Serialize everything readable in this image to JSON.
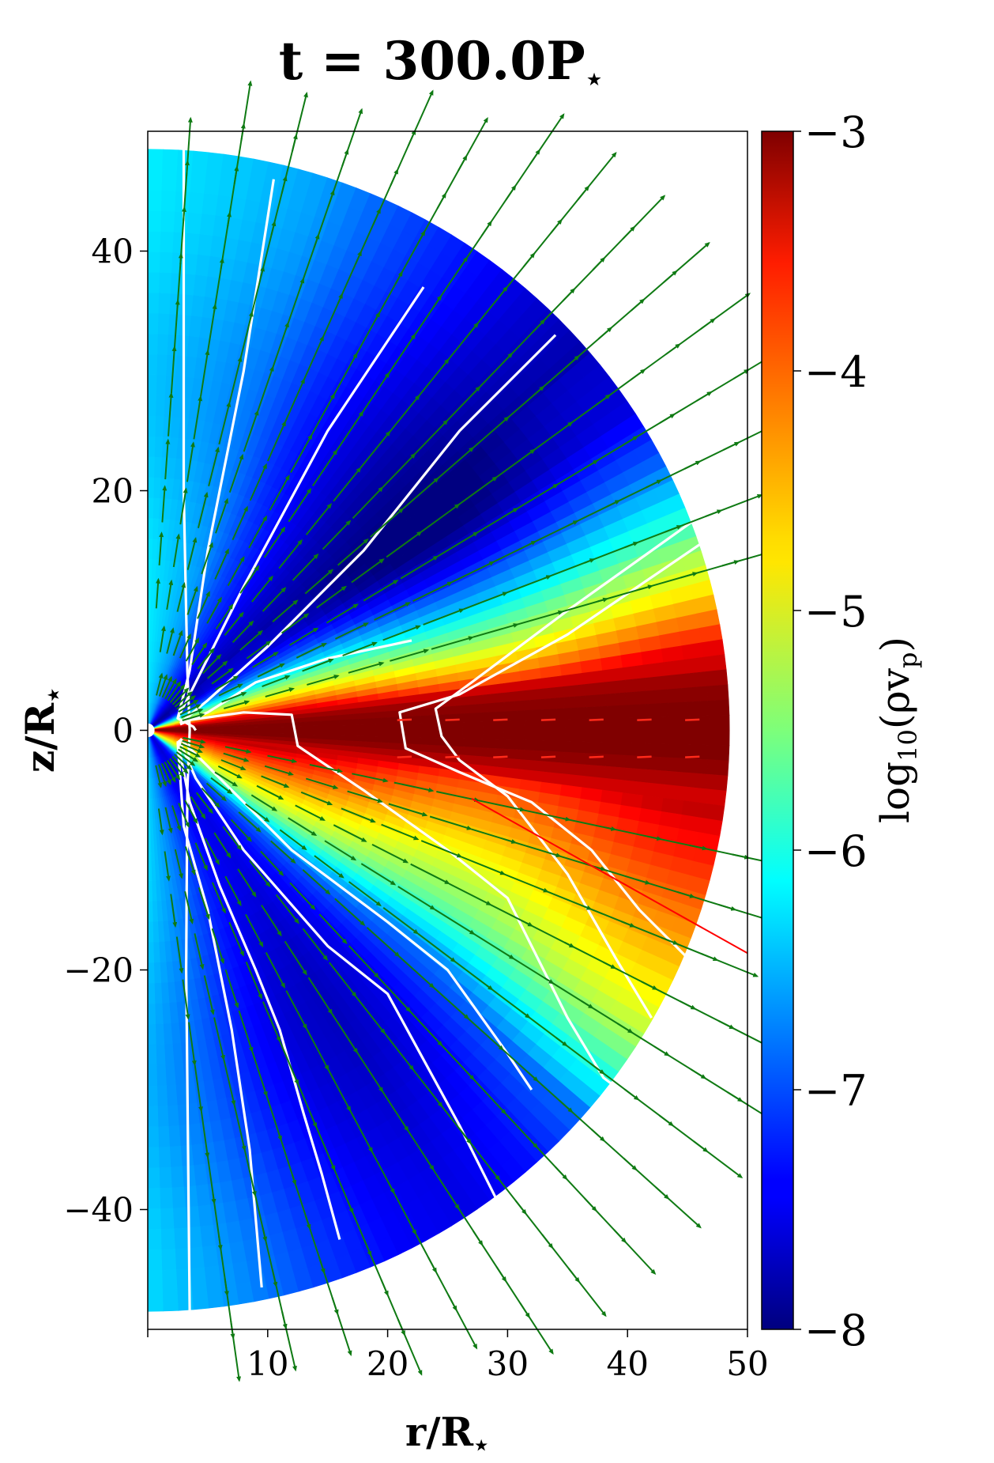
{
  "chart_data": {
    "type": "heatmap",
    "title_main": "t = 300.0P",
    "title_sub": "⋆",
    "xlabel_main": "r/R",
    "xlabel_sub": "⋆",
    "ylabel_main": "z/R",
    "ylabel_sub": "⋆",
    "xlim": [
      0,
      50
    ],
    "ylim": [
      -50,
      50
    ],
    "x_ticks": [
      {
        "value": 10,
        "label": "10"
      },
      {
        "value": 20,
        "label": "20"
      },
      {
        "value": 30,
        "label": "30"
      },
      {
        "value": 40,
        "label": "40"
      },
      {
        "value": 50,
        "label": "50"
      }
    ],
    "y_ticks": [
      {
        "value": 40,
        "label": "40"
      },
      {
        "value": 20,
        "label": "20"
      },
      {
        "value": 0,
        "label": "0"
      },
      {
        "value": -20,
        "label": "−20"
      },
      {
        "value": -40,
        "label": "−40"
      }
    ],
    "colorbar": {
      "label_main": "log",
      "label_sub": "10",
      "label_rest": "(ρv",
      "label_sub2": "p",
      "label_end": ")",
      "range": [
        -8,
        -3
      ],
      "colormap": "jet",
      "ticks": [
        {
          "value": -3,
          "label": "−3"
        },
        {
          "value": -4,
          "label": "−4"
        },
        {
          "value": -5,
          "label": "−5"
        },
        {
          "value": -6,
          "label": "−6"
        },
        {
          "value": -7,
          "label": "−7"
        },
        {
          "value": -8,
          "label": "−8"
        }
      ]
    },
    "domain_radius": 48.5,
    "field_profile": {
      "theta_deg": [
        90,
        80,
        72,
        64,
        56,
        48,
        40,
        34,
        28,
        22,
        18,
        14,
        10,
        6,
        3,
        0,
        -3,
        -6,
        -10,
        -14,
        -18,
        -22,
        -26,
        -30,
        -34,
        -38,
        -42,
        -48,
        -56,
        -64,
        -72,
        -80,
        -90
      ],
      "log_value": [
        -6.3,
        -6.5,
        -6.7,
        -7.1,
        -7.4,
        -7.7,
        -7.9,
        -7.8,
        -7.2,
        -6.3,
        -5.6,
        -5.0,
        -4.2,
        -3.2,
        -3.0,
        -3.0,
        -3.0,
        -3.3,
        -3.8,
        -4.1,
        -4.4,
        -4.7,
        -5.0,
        -5.3,
        -5.8,
        -6.4,
        -7.0,
        -7.4,
        -7.6,
        -7.5,
        -7.2,
        -6.8,
        -6.4
      ]
    },
    "field_lines": [
      [
        [
          3.0,
          48.5
        ],
        [
          3.0,
          20
        ],
        [
          3.3,
          5
        ],
        [
          3.5,
          0
        ],
        [
          3.3,
          -5
        ],
        [
          3.2,
          -20
        ],
        [
          3.5,
          -48.5
        ]
      ],
      [
        [
          10.5,
          46
        ],
        [
          8,
          30
        ],
        [
          5,
          15
        ],
        [
          3.5,
          5
        ],
        [
          2.5,
          1
        ],
        [
          3.8,
          0.3
        ],
        [
          4,
          0
        ]
      ],
      [
        [
          23,
          37
        ],
        [
          15,
          25
        ],
        [
          8,
          12
        ],
        [
          4,
          4
        ],
        [
          2.5,
          1
        ]
      ],
      [
        [
          34,
          33
        ],
        [
          26,
          25
        ],
        [
          18,
          15
        ],
        [
          10,
          7
        ],
        [
          5,
          2.5
        ],
        [
          2.7,
          0.6
        ]
      ],
      [
        [
          22,
          7.5
        ],
        [
          15,
          6
        ],
        [
          9,
          4
        ],
        [
          5,
          1.5
        ],
        [
          2.7,
          0.5
        ]
      ],
      [
        [
          45.5,
          17.5
        ],
        [
          35,
          10
        ],
        [
          27,
          4
        ],
        [
          24,
          1.8
        ],
        [
          24.5,
          -0.5
        ],
        [
          26,
          -2.5
        ],
        [
          30,
          -5.5
        ],
        [
          35,
          -12
        ],
        [
          39,
          -19
        ],
        [
          42,
          -24
        ]
      ],
      [
        [
          46,
          15.5
        ],
        [
          35,
          8
        ],
        [
          26,
          3
        ],
        [
          21,
          1.5
        ],
        [
          21.5,
          -1.5
        ],
        [
          26,
          -3.5
        ],
        [
          32,
          -6
        ],
        [
          37,
          -10
        ],
        [
          41,
          -15
        ],
        [
          47,
          -21
        ]
      ],
      [
        [
          3,
          0.8
        ],
        [
          8,
          1.5
        ],
        [
          12,
          1.3
        ],
        [
          12.5,
          -1.3
        ],
        [
          18,
          -5
        ],
        [
          25,
          -10
        ],
        [
          30,
          -14
        ],
        [
          35,
          -24
        ],
        [
          38,
          -29
        ],
        [
          40,
          -30.5
        ]
      ],
      [
        [
          2.7,
          -0.7
        ],
        [
          6,
          -4
        ],
        [
          12,
          -10
        ],
        [
          20,
          -16
        ],
        [
          25,
          -20
        ],
        [
          30,
          -27
        ],
        [
          32,
          -30
        ]
      ],
      [
        [
          2.6,
          -0.8
        ],
        [
          4,
          -4
        ],
        [
          8,
          -10
        ],
        [
          15,
          -18
        ],
        [
          20,
          -22
        ],
        [
          26,
          -33
        ],
        [
          29,
          -39
        ]
      ],
      [
        [
          2.5,
          -0.9
        ],
        [
          3.5,
          -6
        ],
        [
          6,
          -13
        ],
        [
          9,
          -20
        ],
        [
          11,
          -25
        ],
        [
          13,
          -32
        ],
        [
          14.5,
          -37
        ],
        [
          16,
          -42.5
        ]
      ],
      [
        [
          2.5,
          -1
        ],
        [
          3,
          -8
        ],
        [
          5,
          -15
        ],
        [
          7,
          -25
        ],
        [
          8.5,
          -35
        ],
        [
          9.5,
          -46.5
        ]
      ]
    ],
    "red_line": [
      [
        27,
        -5.7
      ],
      [
        50,
        -18.6
      ]
    ]
  }
}
